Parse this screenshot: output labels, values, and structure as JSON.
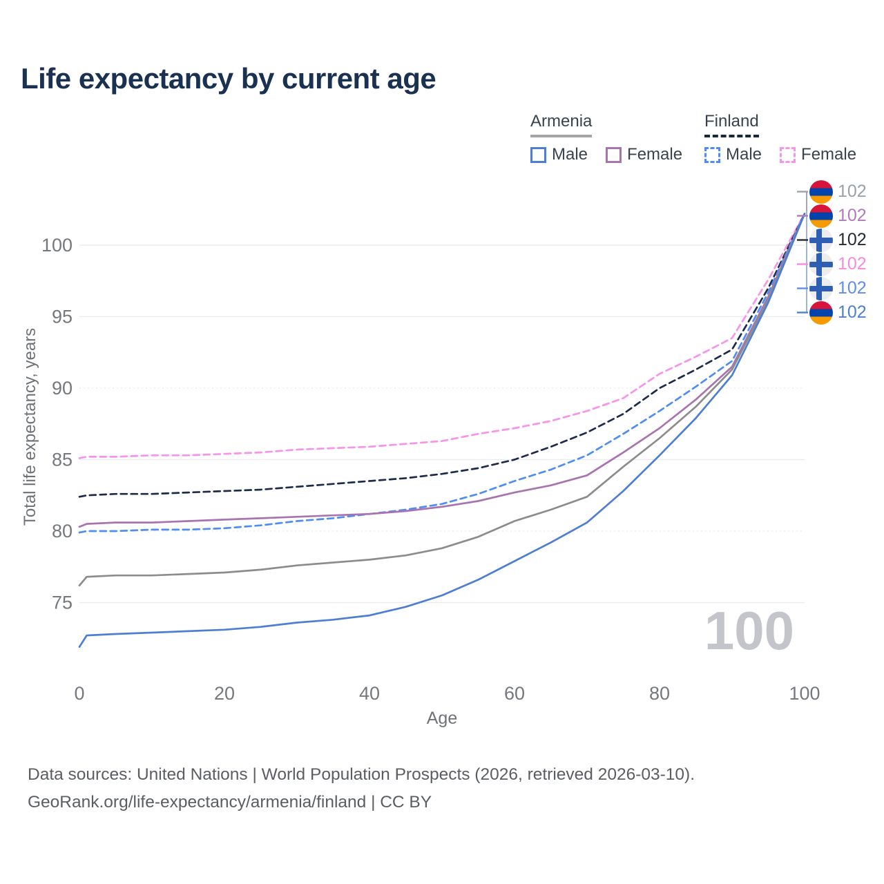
{
  "title": "Life expectancy by current age",
  "legend": {
    "groups": [
      {
        "name": "Armenia",
        "style": "solid",
        "items": [
          {
            "label": "Male",
            "color": "#4d7ed2"
          },
          {
            "label": "Female",
            "color": "#a873ae"
          }
        ]
      },
      {
        "name": "Finland",
        "style": "dashed",
        "items": [
          {
            "label": "Male",
            "color": "#4f8df2"
          },
          {
            "label": "Female",
            "color": "#f893ea"
          }
        ]
      }
    ]
  },
  "chart_data": {
    "type": "line",
    "title": "Life expectancy by current age",
    "xlabel": "Age",
    "ylabel": "Total life expectancy, years",
    "xlim": [
      0,
      100
    ],
    "ylim": [
      71,
      103
    ],
    "xticks": [
      0,
      20,
      40,
      60,
      80,
      100
    ],
    "yticks": [
      75,
      80,
      85,
      90,
      95,
      100
    ],
    "grid_dotted_yticks": [
      80,
      90
    ],
    "grid": true,
    "legend_position": "top-right",
    "hover_age_label": "100",
    "x": [
      0,
      1,
      5,
      10,
      15,
      20,
      25,
      30,
      35,
      40,
      45,
      50,
      55,
      60,
      65,
      70,
      75,
      80,
      85,
      90,
      95,
      100
    ],
    "series": [
      {
        "name": "Finland Female",
        "country": "Finland",
        "sex": "Female",
        "style": "dashed",
        "color": "#f893ea",
        "end_label": "102",
        "values": [
          85.1,
          85.2,
          85.2,
          85.3,
          85.3,
          85.4,
          85.5,
          85.7,
          85.8,
          85.9,
          86.1,
          86.3,
          86.8,
          87.2,
          87.7,
          88.4,
          89.3,
          91.0,
          92.2,
          93.5,
          97.6,
          102.2
        ]
      },
      {
        "name": "Finland (both sexes)",
        "country": "Finland",
        "sex": "Both",
        "style": "dashed",
        "color": "#1c2b49",
        "end_label": "102",
        "values": [
          82.4,
          82.5,
          82.6,
          82.6,
          82.7,
          82.8,
          82.9,
          83.1,
          83.3,
          83.5,
          83.7,
          84.0,
          84.4,
          85.0,
          85.9,
          86.9,
          88.2,
          90.0,
          91.3,
          92.7,
          97.0,
          102.2
        ]
      },
      {
        "name": "Finland Male",
        "country": "Finland",
        "sex": "Male",
        "style": "dashed",
        "color": "#4f8df2",
        "end_label": "102",
        "values": [
          79.9,
          80.0,
          80.0,
          80.1,
          80.1,
          80.2,
          80.4,
          80.7,
          80.9,
          81.2,
          81.5,
          81.9,
          82.6,
          83.5,
          84.3,
          85.3,
          86.8,
          88.4,
          90.1,
          91.9,
          96.7,
          102.2
        ]
      },
      {
        "name": "Armenia Female",
        "country": "Armenia",
        "sex": "Female",
        "style": "solid",
        "color": "#a873ae",
        "end_label": "102",
        "values": [
          80.3,
          80.5,
          80.6,
          80.6,
          80.7,
          80.8,
          80.9,
          81.0,
          81.1,
          81.2,
          81.4,
          81.7,
          82.1,
          82.7,
          83.2,
          83.9,
          85.5,
          87.2,
          89.2,
          91.5,
          96.4,
          102.2
        ]
      },
      {
        "name": "Armenia (both sexes)",
        "country": "Armenia",
        "sex": "Both",
        "style": "solid",
        "color": "#8c8c8c",
        "end_label": "102",
        "values": [
          76.2,
          76.8,
          76.9,
          76.9,
          77.0,
          77.1,
          77.3,
          77.6,
          77.8,
          78.0,
          78.3,
          78.8,
          79.6,
          80.7,
          81.5,
          82.4,
          84.5,
          86.5,
          88.7,
          91.3,
          96.2,
          102.2
        ]
      },
      {
        "name": "Armenia Male",
        "country": "Armenia",
        "sex": "Male",
        "style": "solid",
        "color": "#4d7ed2",
        "end_label": "102",
        "values": [
          71.9,
          72.7,
          72.8,
          72.9,
          73.0,
          73.1,
          73.3,
          73.6,
          73.8,
          74.1,
          74.7,
          75.5,
          76.6,
          77.9,
          79.2,
          80.6,
          82.8,
          85.3,
          87.9,
          90.9,
          96.0,
          102.2
        ]
      }
    ],
    "right_labels": [
      {
        "series": "armenia-both",
        "flag": "armenia",
        "label": "102",
        "color": "#9aa1a9"
      },
      {
        "series": "armenia-female",
        "flag": "armenia",
        "label": "102",
        "color": "#b07ab8"
      },
      {
        "series": "finland-both",
        "flag": "finland",
        "label": "102",
        "color": "#252b33"
      },
      {
        "series": "finland-female",
        "flag": "finland",
        "label": "102",
        "color": "#f78ae0"
      },
      {
        "series": "finland-male",
        "flag": "finland",
        "label": "102",
        "color": "#5f8cee"
      },
      {
        "series": "armenia-male",
        "flag": "armenia",
        "label": "102",
        "color": "#4c7fd2"
      }
    ]
  },
  "footer": {
    "line1": "Data sources: United Nations | World Population Prospects (2026, retrieved 2026-03-10).",
    "line2": "GeoRank.org/life-expectancy/armenia/finland | CC BY"
  }
}
